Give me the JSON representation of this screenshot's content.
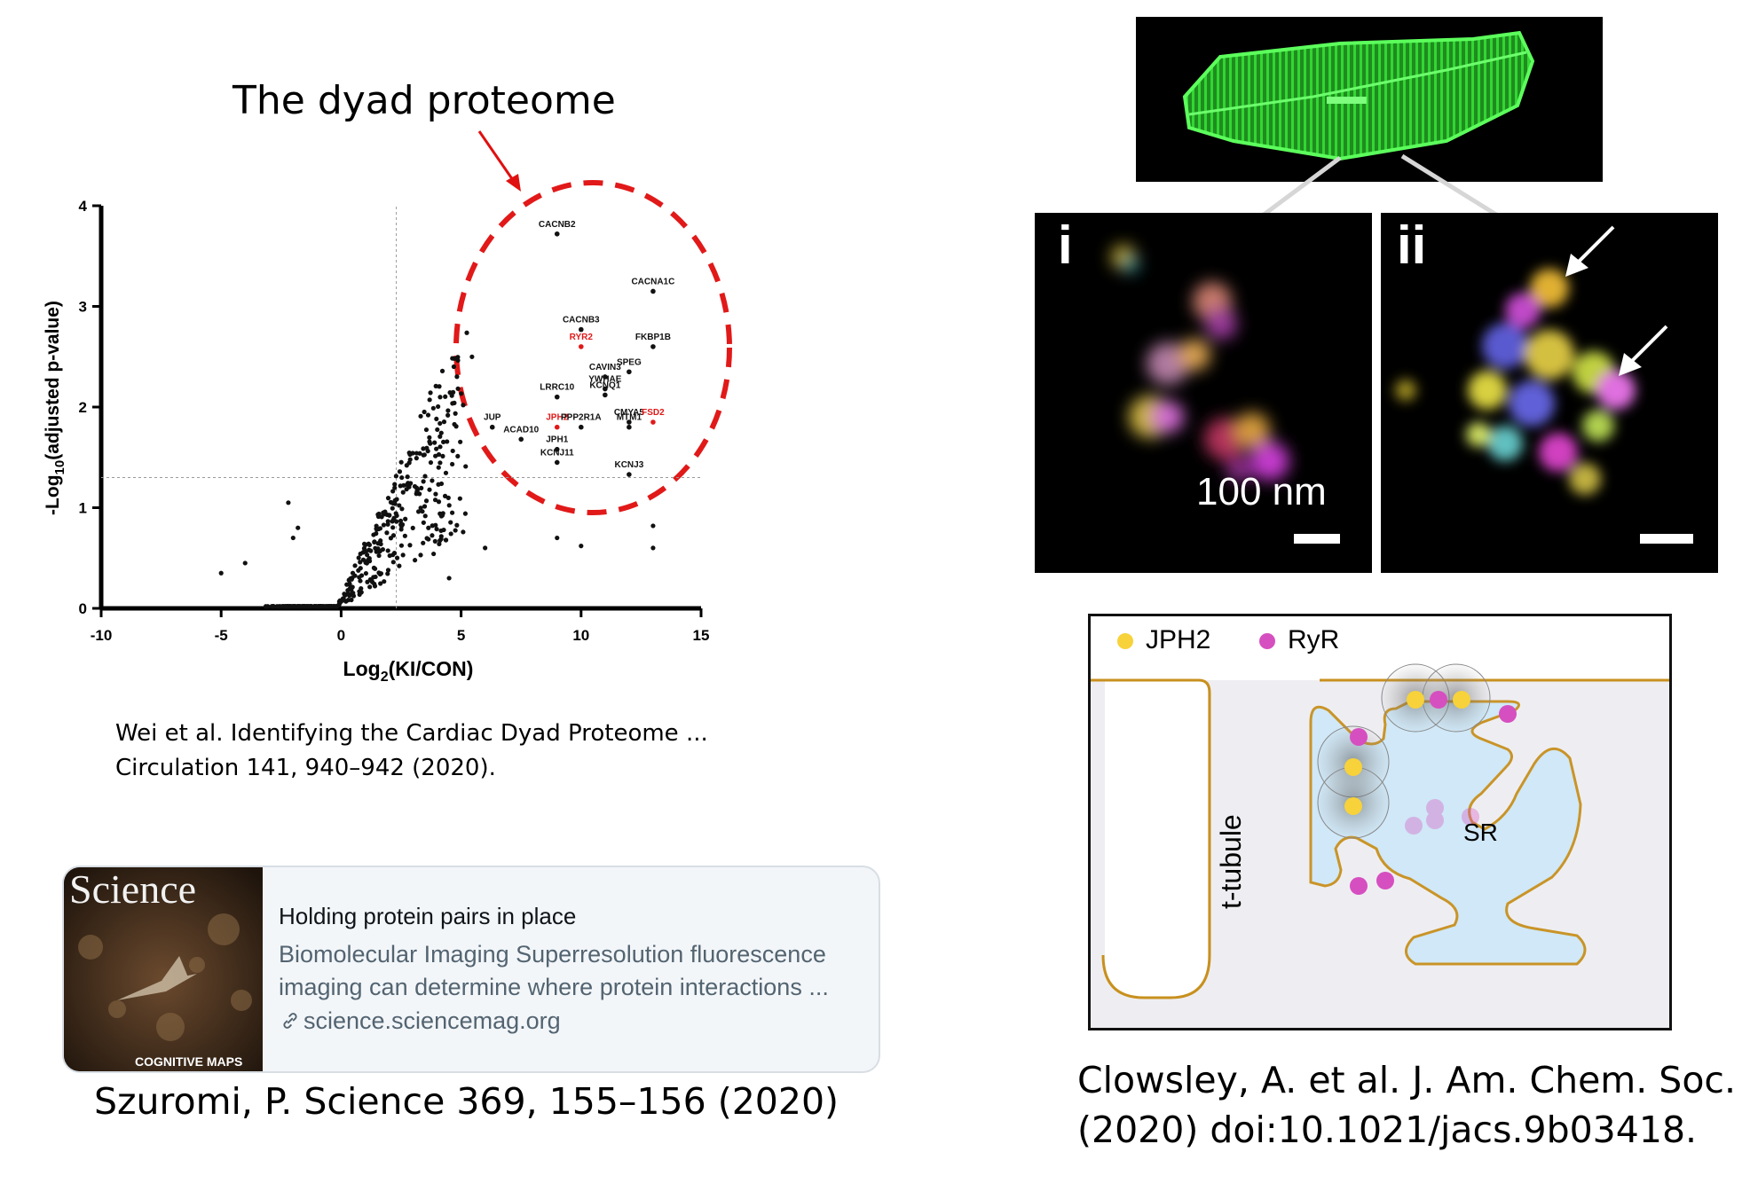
{
  "volcano": {
    "title": "The dyad proteome",
    "xlabel": "Log2(KI/CON)",
    "ylabel": "-Log10(adjusted p-value)",
    "xticks": [
      "-10",
      "-5",
      "0",
      "5",
      "10",
      "15"
    ],
    "yticks": [
      "0",
      "1",
      "2",
      "3",
      "4"
    ],
    "labels_black": [
      "CACNB2",
      "CACNA1C",
      "CACNB3",
      "FKBP1B",
      "SPEG",
      "CAVIN3",
      "YWHAE",
      "KCNQ1",
      "LRRC10",
      "CMYA5",
      "MTM1",
      "JUP",
      "ACAD10",
      "JPH1",
      "PPP2R1A",
      "KCNJ11",
      "KCNJ3"
    ],
    "labels_red": [
      "RYR2",
      "JPH2",
      "FSD2"
    ],
    "citation_line1": "Wei et al. Identifying the Cardiac Dyad Proteome ...",
    "citation_line2": "Circulation 141, 940–942 (2020)."
  },
  "chart_data": {
    "type": "scatter",
    "title": "The dyad proteome",
    "xlabel": "Log2(KI/CON)",
    "ylabel": "-Log10(adjusted p-value)",
    "xlim": [
      -10,
      15
    ],
    "ylim": [
      0,
      4
    ],
    "reference_lines": {
      "x": 2.3,
      "y": 1.3
    },
    "labeled_points": [
      {
        "label": "CACNB2",
        "x": 9,
        "y": 3.72
      },
      {
        "label": "CACNA1C",
        "x": 13,
        "y": 3.15
      },
      {
        "label": "CACNB3",
        "x": 10,
        "y": 2.77
      },
      {
        "label": "RYR2",
        "x": 10,
        "y": 2.6,
        "highlight": true
      },
      {
        "label": "FKBP1B",
        "x": 13,
        "y": 2.6
      },
      {
        "label": "SPEG",
        "x": 12,
        "y": 2.35
      },
      {
        "label": "CAVIN3",
        "x": 11,
        "y": 2.3
      },
      {
        "label": "YWHAE",
        "x": 11,
        "y": 2.18
      },
      {
        "label": "KCNQ1",
        "x": 11,
        "y": 2.12
      },
      {
        "label": "LRRC10",
        "x": 9,
        "y": 2.1
      },
      {
        "label": "CMYA5",
        "x": 12,
        "y": 1.85
      },
      {
        "label": "FSD2",
        "x": 13,
        "y": 1.85,
        "highlight": true
      },
      {
        "label": "MTM1",
        "x": 12,
        "y": 1.8
      },
      {
        "label": "JUP",
        "x": 6.3,
        "y": 1.8
      },
      {
        "label": "JPH2",
        "x": 9,
        "y": 1.8,
        "highlight": true
      },
      {
        "label": "PPP2R1A",
        "x": 10,
        "y": 1.8
      },
      {
        "label": "ACAD10",
        "x": 7.5,
        "y": 1.68
      },
      {
        "label": "JPH1",
        "x": 9,
        "y": 1.58
      },
      {
        "label": "KCNJ11",
        "x": 9,
        "y": 1.45
      },
      {
        "label": "KCNJ3",
        "x": 12,
        "y": 1.33
      }
    ]
  },
  "microscopy": {
    "panel_i_label": "i",
    "panel_ii_label": "ii",
    "scale_text": "100 nm"
  },
  "diagram": {
    "legend_jph2": "JPH2",
    "legend_ryr": "RyR",
    "sr_label": "SR",
    "ttubule_label": "t-tubule",
    "jph2_color": "#f7d23a",
    "ryr_color": "#d64fc0",
    "citation_line1": "Clowsley, A. et al. J. Am. Chem. Soc.",
    "citation_line2": "(2020) doi:10.1021/jacs.9b03418."
  },
  "card": {
    "thumb_masthead": "Science",
    "thumb_caption": "COGNITIVE MAPS",
    "title": "Holding protein pairs in place",
    "description": "Biomolecular Imaging Superresolution fluorescence imaging can determine where protein interactions ...",
    "link": "science.sciencemag.org",
    "citation": "Szuromi, P. Science 369, 155–156 (2020)"
  }
}
